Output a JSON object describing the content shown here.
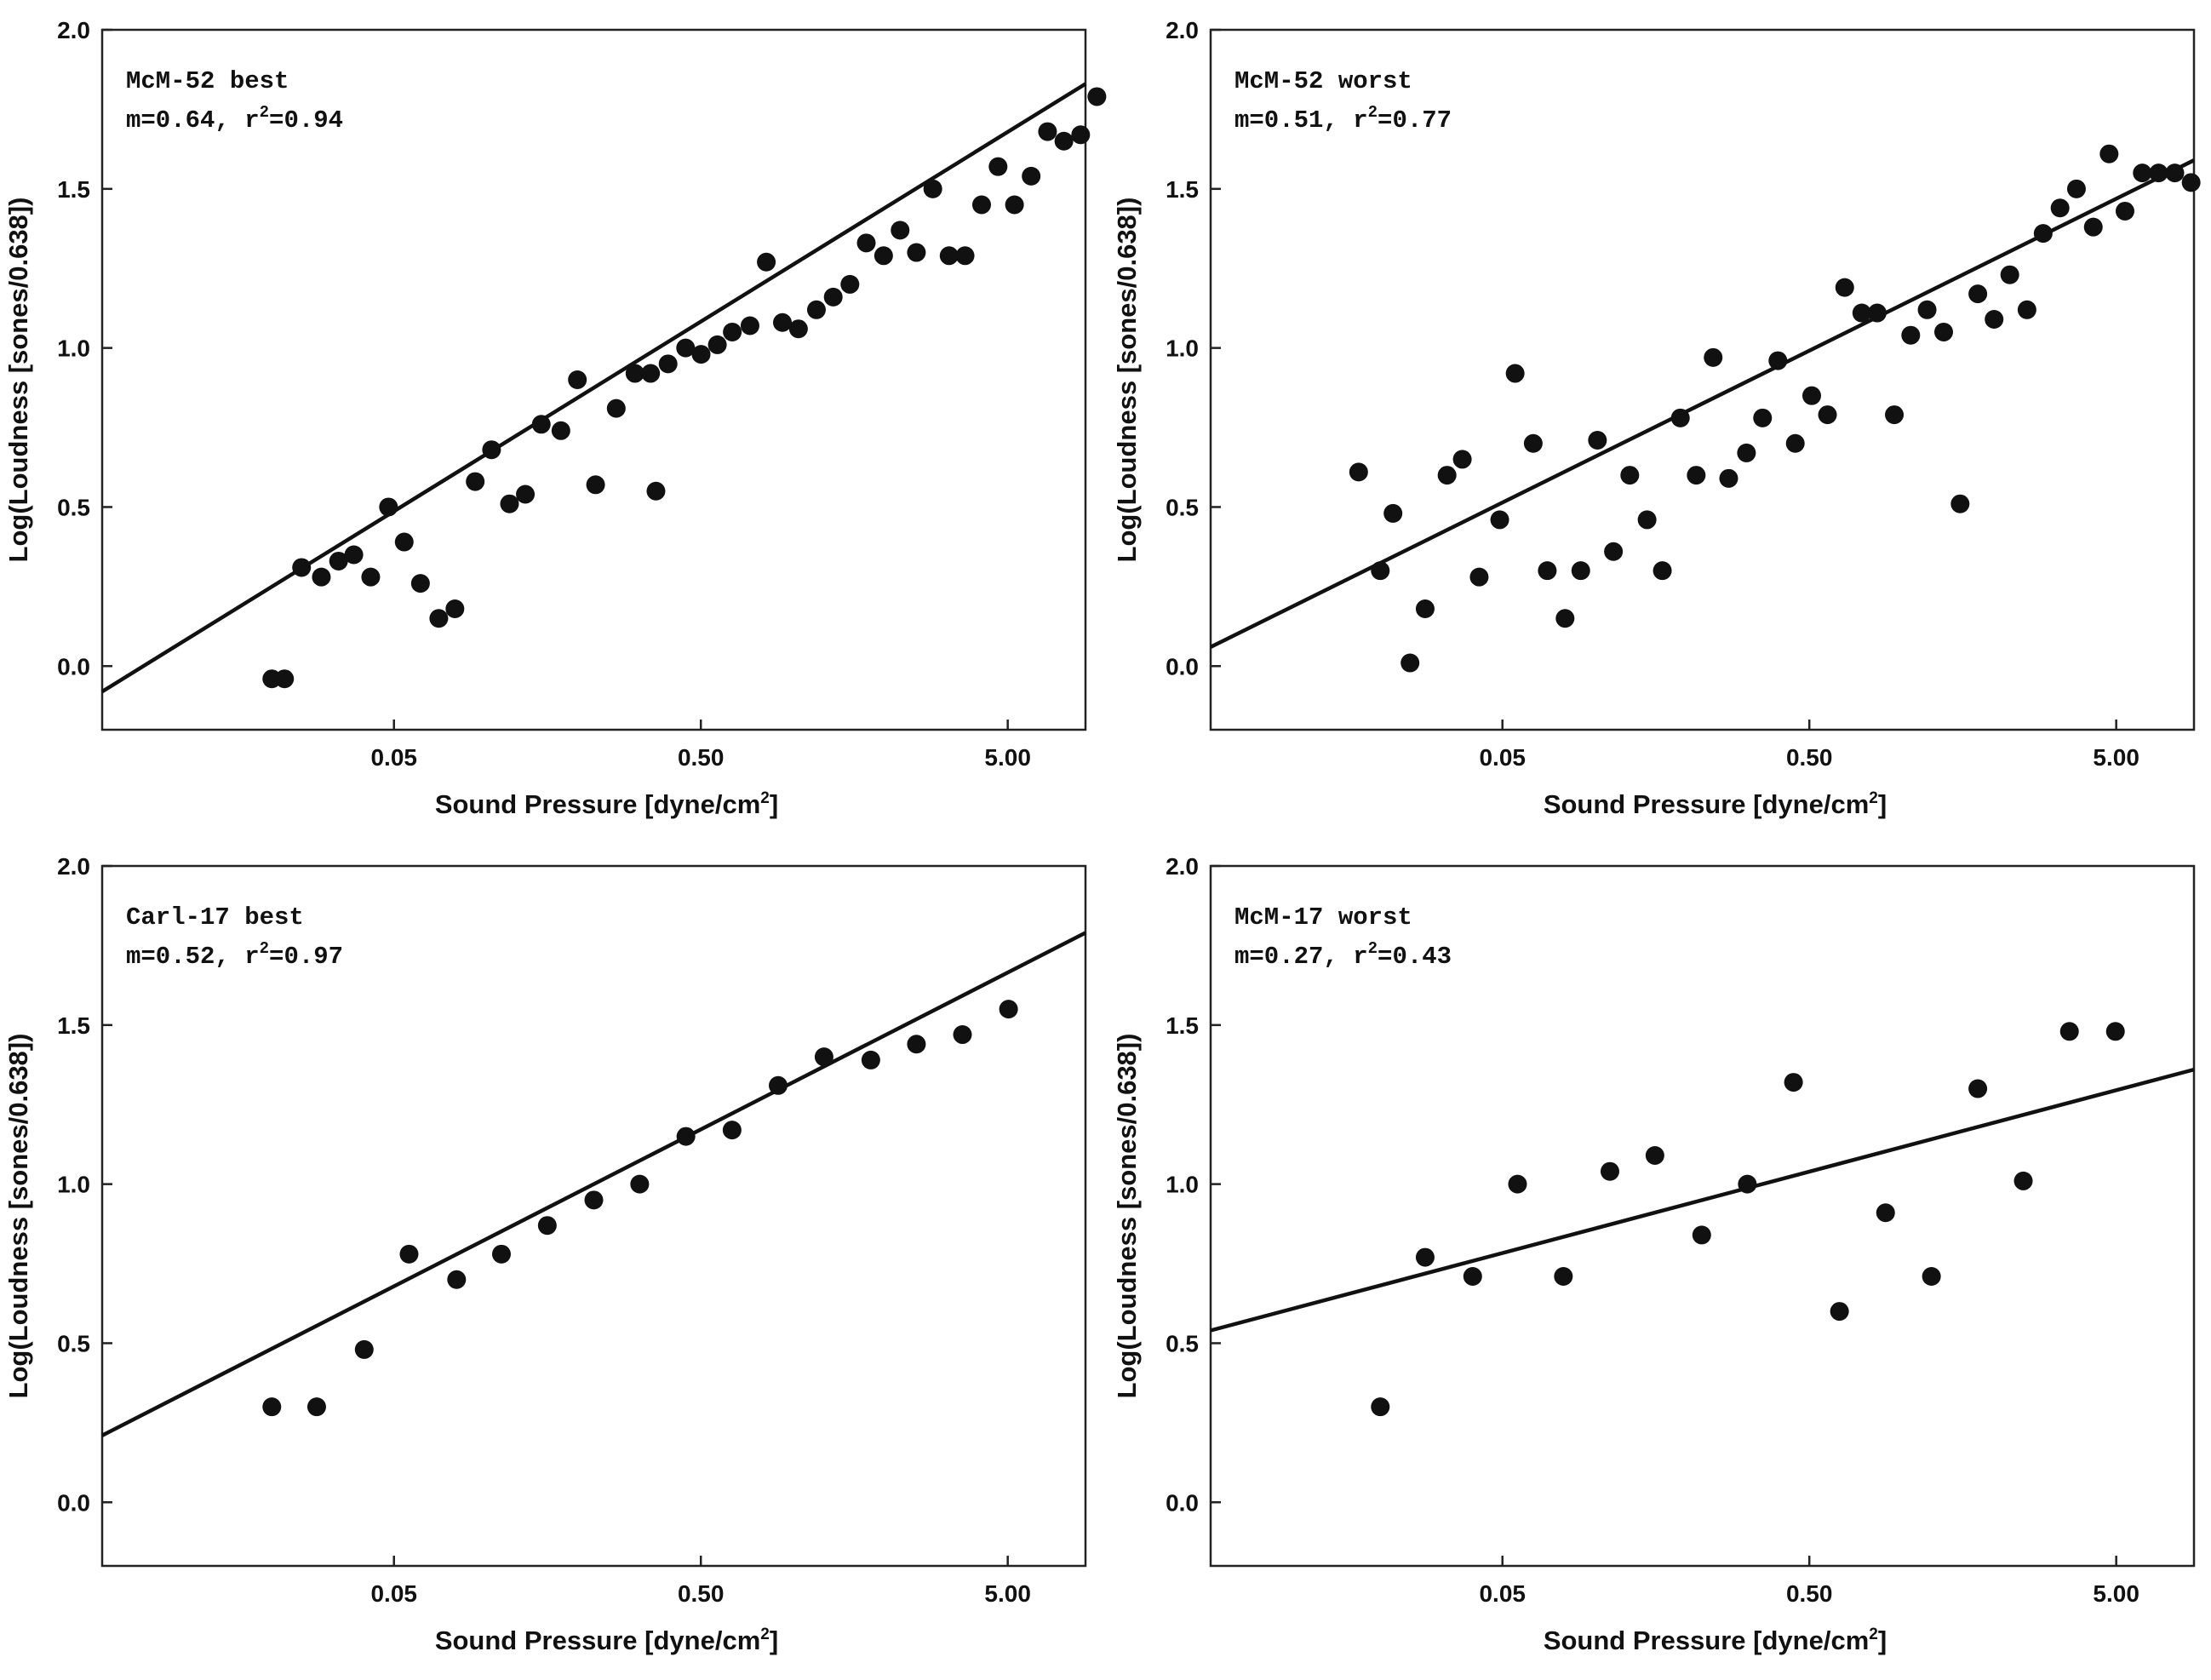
{
  "chart_data": [
    {
      "type": "scatter",
      "panel": "top-left",
      "annotation_name": "McM-52 best",
      "annotation_slope": "m=0.64",
      "annotation_r": "r",
      "annotation_r_exp": "2",
      "annotation_r_value": "=0.94",
      "xlabel": "Sound Pressure [dyne/cm",
      "xlabel_sup": "2",
      "xlabel_end": "]",
      "ylabel": "Log(Loudness [sones/0.638])",
      "x_scale": "log",
      "xlim": [
        0.0056,
        8.96
      ],
      "ylim": [
        -0.2,
        2.0
      ],
      "xticks": [
        {
          "v": 0.05,
          "label": "0.05"
        },
        {
          "v": 0.5,
          "label": "0.50"
        },
        {
          "v": 5.0,
          "label": "5.00"
        }
      ],
      "yticks": [
        {
          "v": 0.0,
          "label": "0.0"
        },
        {
          "v": 0.5,
          "label": "0.5"
        },
        {
          "v": 1.0,
          "label": "1.0"
        },
        {
          "v": 1.5,
          "label": "1.5"
        },
        {
          "v": 2.0,
          "label": "2.0"
        }
      ],
      "fit_line": {
        "slope": 0.64,
        "y_at_xmin": -0.08,
        "y_at_xmax": 1.83
      },
      "points": [
        [
          0.02,
          -0.04
        ],
        [
          0.022,
          -0.04
        ],
        [
          0.025,
          0.31
        ],
        [
          0.029,
          0.28
        ],
        [
          0.033,
          0.33
        ],
        [
          0.037,
          0.35
        ],
        [
          0.042,
          0.28
        ],
        [
          0.048,
          0.5
        ],
        [
          0.054,
          0.39
        ],
        [
          0.061,
          0.26
        ],
        [
          0.07,
          0.15
        ],
        [
          0.079,
          0.18
        ],
        [
          0.092,
          0.58
        ],
        [
          0.104,
          0.68
        ],
        [
          0.119,
          0.51
        ],
        [
          0.134,
          0.54
        ],
        [
          0.151,
          0.76
        ],
        [
          0.175,
          0.74
        ],
        [
          0.198,
          0.9
        ],
        [
          0.227,
          0.57
        ],
        [
          0.265,
          0.81
        ],
        [
          0.305,
          0.92
        ],
        [
          0.343,
          0.92
        ],
        [
          0.391,
          0.95
        ],
        [
          0.357,
          0.55
        ],
        [
          0.446,
          1.0
        ],
        [
          0.501,
          0.98
        ],
        [
          0.566,
          1.01
        ],
        [
          0.633,
          1.05
        ],
        [
          0.723,
          1.07
        ],
        [
          0.817,
          1.27
        ],
        [
          0.922,
          1.08
        ],
        [
          1.04,
          1.06
        ],
        [
          1.19,
          1.12
        ],
        [
          1.35,
          1.16
        ],
        [
          1.53,
          1.2
        ],
        [
          1.73,
          1.33
        ],
        [
          1.97,
          1.29
        ],
        [
          2.23,
          1.37
        ],
        [
          2.52,
          1.3
        ],
        [
          2.85,
          1.5
        ],
        [
          3.22,
          1.29
        ],
        [
          3.63,
          1.29
        ],
        [
          4.11,
          1.45
        ],
        [
          4.65,
          1.57
        ],
        [
          5.26,
          1.45
        ],
        [
          5.96,
          1.54
        ],
        [
          6.74,
          1.68
        ],
        [
          7.62,
          1.65
        ],
        [
          8.64,
          1.67
        ],
        [
          9.76,
          1.79
        ]
      ]
    },
    {
      "type": "scatter",
      "panel": "top-right",
      "annotation_name": "McM-52 worst",
      "annotation_slope": "m=0.51",
      "annotation_r": "r",
      "annotation_r_exp": "2",
      "annotation_r_value": "=0.77",
      "xlabel": "Sound Pressure [dyne/cm",
      "xlabel_sup": "2",
      "xlabel_end": "]",
      "ylabel": "Log(Loudness [sones/0.638])",
      "x_scale": "log",
      "xlim": [
        0.0056,
        8.96
      ],
      "ylim": [
        -0.2,
        2.0
      ],
      "xticks": [
        {
          "v": 0.05,
          "label": "0.05"
        },
        {
          "v": 0.5,
          "label": "0.50"
        },
        {
          "v": 5.0,
          "label": "5.00"
        }
      ],
      "yticks": [
        {
          "v": 0.0,
          "label": "0.0"
        },
        {
          "v": 0.5,
          "label": "0.5"
        },
        {
          "v": 1.0,
          "label": "1.0"
        },
        {
          "v": 1.5,
          "label": "1.5"
        },
        {
          "v": 2.0,
          "label": "2.0"
        }
      ],
      "fit_line": {
        "slope": 0.51,
        "y_at_xmin": 0.06,
        "y_at_xmax": 1.59
      },
      "points": [
        [
          0.017,
          0.61
        ],
        [
          0.02,
          0.3
        ],
        [
          0.022,
          0.48
        ],
        [
          0.025,
          0.01
        ],
        [
          0.028,
          0.18
        ],
        [
          0.033,
          0.6
        ],
        [
          0.037,
          0.65
        ],
        [
          0.042,
          0.28
        ],
        [
          0.049,
          0.46
        ],
        [
          0.055,
          0.92
        ],
        [
          0.063,
          0.7
        ],
        [
          0.07,
          0.3
        ],
        [
          0.08,
          0.15
        ],
        [
          0.09,
          0.3
        ],
        [
          0.102,
          0.71
        ],
        [
          0.115,
          0.36
        ],
        [
          0.13,
          0.6
        ],
        [
          0.148,
          0.46
        ],
        [
          0.166,
          0.3
        ],
        [
          0.19,
          0.78
        ],
        [
          0.214,
          0.6
        ],
        [
          0.243,
          0.97
        ],
        [
          0.273,
          0.59
        ],
        [
          0.312,
          0.67
        ],
        [
          0.352,
          0.78
        ],
        [
          0.395,
          0.96
        ],
        [
          0.45,
          0.7
        ],
        [
          0.509,
          0.85
        ],
        [
          0.573,
          0.79
        ],
        [
          0.652,
          1.19
        ],
        [
          0.741,
          1.11
        ],
        [
          0.832,
          1.11
        ],
        [
          0.946,
          0.79
        ],
        [
          1.07,
          1.04
        ],
        [
          1.21,
          1.12
        ],
        [
          1.37,
          1.05
        ],
        [
          1.55,
          0.51
        ],
        [
          1.77,
          1.17
        ],
        [
          2.0,
          1.09
        ],
        [
          2.25,
          1.23
        ],
        [
          2.56,
          1.12
        ],
        [
          2.89,
          1.36
        ],
        [
          3.28,
          1.44
        ],
        [
          3.71,
          1.5
        ],
        [
          4.21,
          1.38
        ],
        [
          4.74,
          1.61
        ],
        [
          5.34,
          1.43
        ],
        [
          6.08,
          1.55
        ],
        [
          6.87,
          1.55
        ],
        [
          7.76,
          1.55
        ],
        [
          8.77,
          1.52
        ]
      ]
    },
    {
      "type": "scatter",
      "panel": "bottom-left",
      "annotation_name": "Carl-17 best",
      "annotation_slope": "m=0.52",
      "annotation_r": "r",
      "annotation_r_exp": "2",
      "annotation_r_value": "=0.97",
      "xlabel": "Sound Pressure [dyne/cm",
      "xlabel_sup": "2",
      "xlabel_end": "]",
      "ylabel": "Log(Loudness [sones/0.638])",
      "x_scale": "log",
      "xlim": [
        0.0056,
        8.96
      ],
      "ylim": [
        -0.2,
        2.0
      ],
      "xticks": [
        {
          "v": 0.05,
          "label": "0.05"
        },
        {
          "v": 0.5,
          "label": "0.50"
        },
        {
          "v": 5.0,
          "label": "5.00"
        }
      ],
      "yticks": [
        {
          "v": 0.0,
          "label": "0.0"
        },
        {
          "v": 0.5,
          "label": "0.5"
        },
        {
          "v": 1.0,
          "label": "1.0"
        },
        {
          "v": 1.5,
          "label": "1.5"
        },
        {
          "v": 2.0,
          "label": "2.0"
        }
      ],
      "fit_line": {
        "slope": 0.52,
        "y_at_xmin": 0.21,
        "y_at_xmax": 1.79
      },
      "points": [
        [
          0.02,
          0.3
        ],
        [
          0.028,
          0.3
        ],
        [
          0.04,
          0.48
        ],
        [
          0.056,
          0.78
        ],
        [
          0.08,
          0.7
        ],
        [
          0.112,
          0.78
        ],
        [
          0.158,
          0.87
        ],
        [
          0.224,
          0.95
        ],
        [
          0.316,
          1.0
        ],
        [
          0.447,
          1.15
        ],
        [
          0.632,
          1.17
        ],
        [
          0.893,
          1.31
        ],
        [
          1.26,
          1.4
        ],
        [
          1.79,
          1.39
        ],
        [
          2.52,
          1.44
        ],
        [
          3.56,
          1.47
        ],
        [
          5.03,
          1.55
        ]
      ]
    },
    {
      "type": "scatter",
      "panel": "bottom-right",
      "annotation_name": "McM-17 worst",
      "annotation_slope": "m=0.27",
      "annotation_r": "r",
      "annotation_r_exp": "2",
      "annotation_r_value": "=0.43",
      "xlabel": "Sound Pressure [dyne/cm",
      "xlabel_sup": "2",
      "xlabel_end": "]",
      "ylabel": "Log(Loudness [sones/0.638])",
      "x_scale": "log",
      "xlim": [
        0.0056,
        8.96
      ],
      "ylim": [
        -0.2,
        2.0
      ],
      "xticks": [
        {
          "v": 0.05,
          "label": "0.05"
        },
        {
          "v": 0.5,
          "label": "0.50"
        },
        {
          "v": 5.0,
          "label": "5.00"
        }
      ],
      "yticks": [
        {
          "v": 0.0,
          "label": "0.0"
        },
        {
          "v": 0.5,
          "label": "0.5"
        },
        {
          "v": 1.0,
          "label": "1.0"
        },
        {
          "v": 1.5,
          "label": "1.5"
        },
        {
          "v": 2.0,
          "label": "2.0"
        }
      ],
      "fit_line": {
        "slope": 0.27,
        "y_at_xmin": 0.54,
        "y_at_xmax": 1.36
      },
      "points": [
        [
          0.02,
          0.3
        ],
        [
          0.028,
          0.77
        ],
        [
          0.04,
          0.71
        ],
        [
          0.056,
          1.0
        ],
        [
          0.079,
          0.71
        ],
        [
          0.112,
          1.04
        ],
        [
          0.157,
          1.09
        ],
        [
          0.223,
          0.84
        ],
        [
          0.314,
          1.0
        ],
        [
          0.444,
          1.32
        ],
        [
          0.627,
          0.6
        ],
        [
          0.886,
          0.91
        ],
        [
          1.25,
          0.71
        ],
        [
          1.77,
          1.3
        ],
        [
          2.49,
          1.01
        ],
        [
          3.52,
          1.48
        ],
        [
          4.97,
          1.48
        ]
      ]
    }
  ]
}
